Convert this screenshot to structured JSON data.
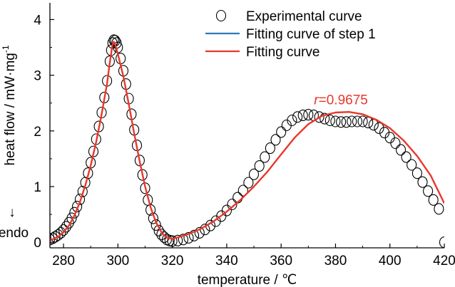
{
  "chart_data": {
    "type": "scatter",
    "xlabel": "temperature / ℃",
    "ylabel_main": "heat flow / mW·mg",
    "ylabel_sup": "-1",
    "endo_label": "endo",
    "endo_arrow": "↓",
    "xlim": [
      275,
      420
    ],
    "ylim": [
      -0.1,
      4.3
    ],
    "x_ticks": [
      280,
      300,
      320,
      340,
      360,
      380,
      400,
      420
    ],
    "y_ticks": [
      0,
      1,
      2,
      3,
      4
    ],
    "grid": false,
    "legend_position": "top-right",
    "annotation": {
      "italic": "r",
      "rest": "=0.9675",
      "x": 382,
      "y": 2.48,
      "color": "#e8372c"
    },
    "series": [
      {
        "name": "Experimental curve",
        "kind": "markers",
        "marker": "open-circle",
        "color": "#000000",
        "points": [
          [
            275,
            0.05
          ],
          [
            276,
            0.07
          ],
          [
            277,
            0.1
          ],
          [
            278,
            0.13
          ],
          [
            279,
            0.17
          ],
          [
            280,
            0.22
          ],
          [
            281,
            0.28
          ],
          [
            282,
            0.35
          ],
          [
            283,
            0.43
          ],
          [
            284,
            0.53
          ],
          [
            285,
            0.64
          ],
          [
            286,
            0.77
          ],
          [
            287,
            0.91
          ],
          [
            288,
            1.07
          ],
          [
            289,
            1.24
          ],
          [
            290,
            1.43
          ],
          [
            291,
            1.63
          ],
          [
            292,
            1.85
          ],
          [
            293,
            2.08
          ],
          [
            294,
            2.33
          ],
          [
            295,
            2.6
          ],
          [
            296,
            2.9
          ],
          [
            297,
            3.25
          ],
          [
            297.5,
            3.45
          ],
          [
            298,
            3.58
          ],
          [
            298.5,
            3.63
          ],
          [
            299,
            3.62
          ],
          [
            299.5,
            3.58
          ],
          [
            300,
            3.5
          ],
          [
            301,
            3.3
          ],
          [
            302,
            3.08
          ],
          [
            303,
            2.84
          ],
          [
            304,
            2.58
          ],
          [
            305,
            2.3
          ],
          [
            306,
            2.02
          ],
          [
            307,
            1.74
          ],
          [
            308,
            1.47
          ],
          [
            309,
            1.21
          ],
          [
            310,
            0.97
          ],
          [
            311,
            0.76
          ],
          [
            312,
            0.58
          ],
          [
            313,
            0.43
          ],
          [
            314,
            0.31
          ],
          [
            315,
            0.21
          ],
          [
            316,
            0.14
          ],
          [
            317,
            0.09
          ],
          [
            318,
            0.05
          ],
          [
            319,
            0.03
          ],
          [
            320,
            0.02
          ],
          [
            322,
            0.03
          ],
          [
            324,
            0.05
          ],
          [
            326,
            0.08
          ],
          [
            328,
            0.12
          ],
          [
            330,
            0.17
          ],
          [
            332,
            0.23
          ],
          [
            334,
            0.3
          ],
          [
            336,
            0.38
          ],
          [
            338,
            0.47
          ],
          [
            340,
            0.57
          ],
          [
            342,
            0.68
          ],
          [
            344,
            0.8
          ],
          [
            346,
            0.93
          ],
          [
            348,
            1.07
          ],
          [
            350,
            1.22
          ],
          [
            352,
            1.37
          ],
          [
            354,
            1.53
          ],
          [
            356,
            1.69
          ],
          [
            358,
            1.84
          ],
          [
            360,
            1.98
          ],
          [
            362,
            2.1
          ],
          [
            364,
            2.19
          ],
          [
            366,
            2.25
          ],
          [
            368,
            2.28
          ],
          [
            370,
            2.29
          ],
          [
            372,
            2.28
          ],
          [
            374,
            2.25
          ],
          [
            376,
            2.22
          ],
          [
            378,
            2.19
          ],
          [
            380,
            2.17
          ],
          [
            382,
            2.16
          ],
          [
            384,
            2.16
          ],
          [
            386,
            2.17
          ],
          [
            388,
            2.17
          ],
          [
            390,
            2.17
          ],
          [
            392,
            2.15
          ],
          [
            394,
            2.11
          ],
          [
            396,
            2.05
          ],
          [
            398,
            1.97
          ],
          [
            400,
            1.88
          ],
          [
            402,
            1.78
          ],
          [
            404,
            1.66
          ],
          [
            406,
            1.53
          ],
          [
            408,
            1.39
          ],
          [
            410,
            1.24
          ],
          [
            412,
            1.08
          ],
          [
            414,
            0.92
          ],
          [
            416,
            0.76
          ],
          [
            418,
            0.6
          ],
          [
            420,
            0.0
          ]
        ]
      },
      {
        "name": "Fitting curve of step 1",
        "kind": "line",
        "color": "#2a7bb5",
        "points": [
          [
            275,
            0.0
          ],
          [
            420,
            0.0
          ]
        ]
      },
      {
        "name": "Fitting curve",
        "kind": "line",
        "color": "#e8372c",
        "points": [
          [
            275,
            0.03
          ],
          [
            278,
            0.1
          ],
          [
            280,
            0.18
          ],
          [
            282,
            0.3
          ],
          [
            284,
            0.48
          ],
          [
            286,
            0.72
          ],
          [
            288,
            1.02
          ],
          [
            290,
            1.38
          ],
          [
            292,
            1.8
          ],
          [
            294,
            2.3
          ],
          [
            296,
            2.85
          ],
          [
            297,
            3.22
          ],
          [
            298,
            3.55
          ],
          [
            298.5,
            3.6
          ],
          [
            299,
            3.55
          ],
          [
            300,
            3.38
          ],
          [
            302,
            2.98
          ],
          [
            304,
            2.48
          ],
          [
            306,
            1.95
          ],
          [
            308,
            1.45
          ],
          [
            310,
            1.0
          ],
          [
            312,
            0.63
          ],
          [
            314,
            0.36
          ],
          [
            316,
            0.18
          ],
          [
            318,
            0.08
          ],
          [
            320,
            0.06
          ],
          [
            325,
            0.13
          ],
          [
            330,
            0.23
          ],
          [
            335,
            0.37
          ],
          [
            340,
            0.55
          ],
          [
            345,
            0.76
          ],
          [
            350,
            1.0
          ],
          [
            355,
            1.27
          ],
          [
            360,
            1.58
          ],
          [
            365,
            1.88
          ],
          [
            370,
            2.12
          ],
          [
            375,
            2.27
          ],
          [
            380,
            2.33
          ],
          [
            385,
            2.34
          ],
          [
            390,
            2.3
          ],
          [
            395,
            2.2
          ],
          [
            400,
            2.05
          ],
          [
            405,
            1.83
          ],
          [
            410,
            1.55
          ],
          [
            415,
            1.2
          ],
          [
            420,
            0.7
          ]
        ]
      }
    ]
  }
}
